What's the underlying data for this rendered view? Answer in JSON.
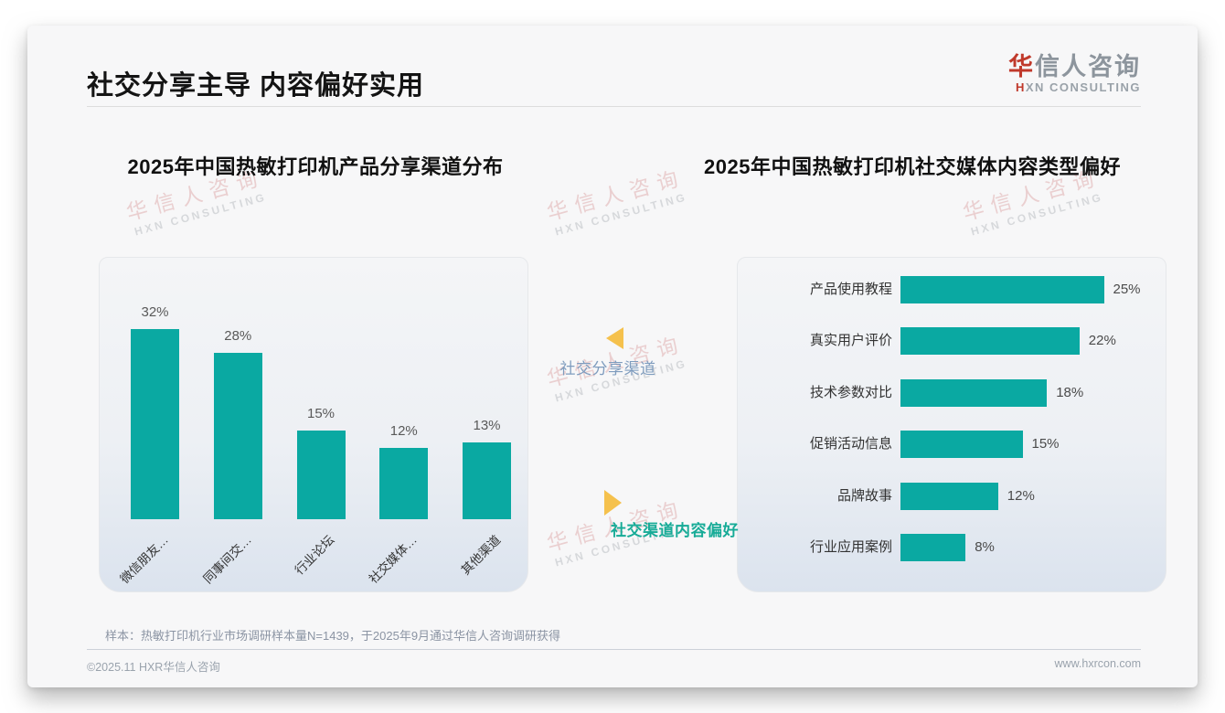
{
  "header": {
    "title": "社交分享主导 内容偏好实用",
    "logo": {
      "cn_accent": "华",
      "cn_rest": "信人咨询",
      "en_accent": "H",
      "en_rest": "XN CONSULTING"
    }
  },
  "annotations": {
    "share_channel_label": "社交分享渠道",
    "content_preference_label": "社交渠道内容偏好"
  },
  "chart_data": [
    {
      "type": "bar",
      "orientation": "vertical",
      "title": "2025年中国热敏打印机产品分享渠道分布",
      "categories": [
        "微信朋友…",
        "同事间交…",
        "行业论坛",
        "社交媒体…",
        "其他渠道"
      ],
      "values": [
        32,
        28,
        15,
        12,
        13
      ],
      "data_labels": [
        "32%",
        "28%",
        "15%",
        "12%",
        "13%"
      ],
      "unit": "%",
      "bar_color": "#0aa9a2",
      "ylim": [
        0,
        35
      ],
      "grid": false,
      "legend": "none"
    },
    {
      "type": "bar",
      "orientation": "horizontal",
      "title": "2025年中国热敏打印机社交媒体内容类型偏好",
      "categories": [
        "产品使用教程",
        "真实用户评价",
        "技术参数对比",
        "促销活动信息",
        "品牌故事",
        "行业应用案例"
      ],
      "values": [
        25,
        22,
        18,
        15,
        12,
        8
      ],
      "data_labels": [
        "25%",
        "22%",
        "18%",
        "15%",
        "12%",
        "8%"
      ],
      "unit": "%",
      "bar_color": "#0aa9a2",
      "xlim": [
        0,
        28
      ],
      "grid": false,
      "legend": "none"
    }
  ],
  "footer": {
    "source_note": "样本：热敏打印机行业市场调研样本量N=1439，于2025年9月通过华信人咨询调研获得",
    "copyright": "©2025.11 HXR华信人咨询",
    "website": "www.hxrcon.com"
  },
  "watermark": {
    "line1": "华信人咨询",
    "line2": "HXN CONSULTING"
  }
}
